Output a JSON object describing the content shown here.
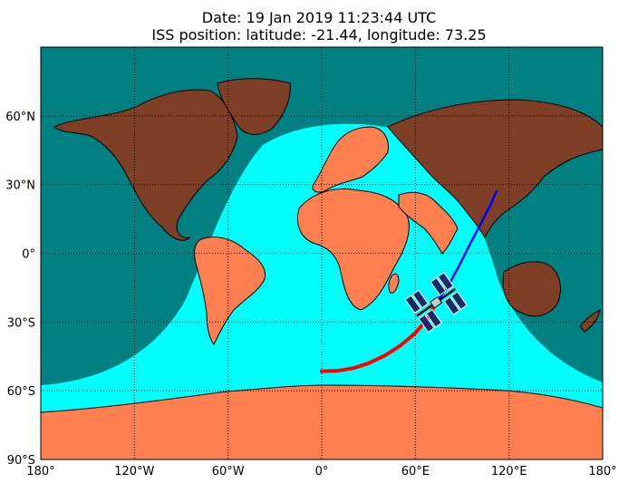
{
  "header": {
    "date_line": "Date: 19 Jan 2019 11:23:44 UTC",
    "position_line": "ISS position: latitude: -21.44, longitude: 73.25"
  },
  "map": {
    "projection": "equirectangular",
    "ylim": [
      -90,
      90
    ],
    "xlim": [
      -180,
      180
    ],
    "grid": "dotted",
    "colors": {
      "ocean_night": "#008080",
      "ocean_day": "#00ffff",
      "land_day": "#ff7f50",
      "land_night": "#7f3f26",
      "track_past": "#ff0000",
      "track_future": "#0000ff"
    },
    "lat_ticks": [
      {
        "value": 60,
        "label": "60°N"
      },
      {
        "value": 30,
        "label": "30°N"
      },
      {
        "value": 0,
        "label": "0°"
      },
      {
        "value": -30,
        "label": "30°S"
      },
      {
        "value": -60,
        "label": "60°S"
      },
      {
        "value": -90,
        "label": "90°S"
      }
    ],
    "lon_ticks": [
      {
        "value": -180,
        "label": "180°"
      },
      {
        "value": -120,
        "label": "120°W"
      },
      {
        "value": -60,
        "label": "60°W"
      },
      {
        "value": 0,
        "label": "0°"
      },
      {
        "value": 60,
        "label": "60°E"
      },
      {
        "value": 120,
        "label": "120°E"
      },
      {
        "value": 180,
        "label": "180°"
      }
    ],
    "iss": {
      "lat": -21.44,
      "lon": 73.25,
      "icon": "iss-station-icon"
    },
    "track_past": [
      {
        "lon": 0,
        "lat": -51.5
      },
      {
        "lon": 10,
        "lat": -51.3
      },
      {
        "lon": 20,
        "lat": -50.2
      },
      {
        "lon": 30,
        "lat": -48.0
      },
      {
        "lon": 40,
        "lat": -44.8
      },
      {
        "lon": 50,
        "lat": -40.5
      },
      {
        "lon": 60,
        "lat": -34.8
      },
      {
        "lon": 68,
        "lat": -28.5
      },
      {
        "lon": 73.25,
        "lat": -21.44
      }
    ],
    "track_future": [
      {
        "lon": 73.25,
        "lat": -21.44
      },
      {
        "lon": 80,
        "lat": -15.5
      },
      {
        "lon": 88,
        "lat": -5.5
      },
      {
        "lon": 95,
        "lat": 4
      },
      {
        "lon": 102,
        "lat": 13
      },
      {
        "lon": 108,
        "lat": 21
      },
      {
        "lon": 112,
        "lat": 27
      }
    ]
  }
}
